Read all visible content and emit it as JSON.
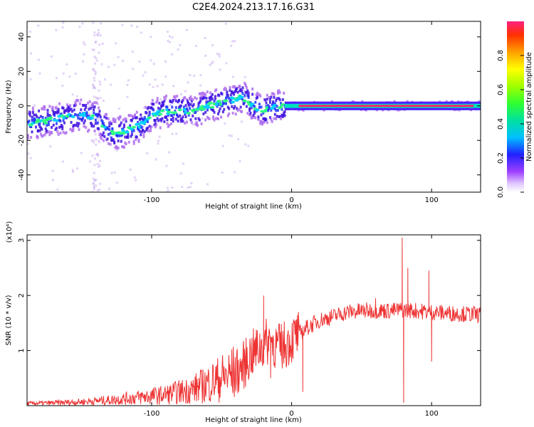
{
  "title": "C2E4.2024.213.17.16.G31",
  "chart_data": [
    {
      "type": "heatmap",
      "xlabel": "Height of straight line (km)",
      "ylabel": "Frequency (Hz)",
      "xlim": [
        -189,
        135
      ],
      "ylim": [
        -50,
        49
      ],
      "xticks": [
        -100,
        0,
        100
      ],
      "yticks": [
        -40,
        -20,
        0,
        20,
        40
      ],
      "grid": false,
      "ridge": {
        "x": [
          -189,
          -170,
          -150,
          -140,
          -130,
          -120,
          -110,
          -100,
          -90,
          -80,
          -70,
          -60,
          -50,
          -40,
          -35,
          -30,
          -25,
          -20,
          -15,
          -10,
          -5,
          0,
          10,
          50,
          75,
          80,
          90,
          100,
          135
        ],
        "y": [
          -10,
          -8,
          -5,
          -7,
          -16,
          -15,
          -12,
          -5,
          -3,
          -3,
          -3,
          0,
          2,
          4,
          5,
          2,
          -1,
          -3,
          -1,
          0,
          0,
          0,
          0,
          0,
          0,
          0,
          0,
          0,
          0
        ]
      },
      "colorbar": {
        "label": "Normalized spectral amplitude",
        "ticks": [
          "0.0",
          "0.2",
          "0.4",
          "0.6",
          "0.8"
        ],
        "range": [
          0,
          1
        ]
      }
    },
    {
      "type": "line",
      "xlabel": "Height of straight line (km)",
      "ylabel": "SNR (10 * v/v)",
      "multiplier": "(x10⁴)",
      "xlim": [
        -189,
        135
      ],
      "ylim": [
        0,
        3.1
      ],
      "xticks": [
        -100,
        0,
        100
      ],
      "yticks": [
        1,
        2,
        3
      ],
      "grid": false,
      "color": "#ee3333",
      "series": [
        {
          "x": [
            -189,
            -170,
            -150,
            -130,
            -110,
            -90,
            -70,
            -60,
            -50,
            -40,
            -35,
            -30,
            -25,
            -20,
            -15,
            -10,
            -5,
            0,
            10,
            20,
            30,
            40,
            50,
            60,
            70,
            80,
            90,
            100,
            110,
            120,
            135
          ],
          "values": [
            0.04,
            0.05,
            0.07,
            0.1,
            0.15,
            0.2,
            0.3,
            0.4,
            0.5,
            0.6,
            0.7,
            0.9,
            1.0,
            1.1,
            1.2,
            1.05,
            1.1,
            1.2,
            1.4,
            1.55,
            1.62,
            1.7,
            1.72,
            1.73,
            1.72,
            1.74,
            1.72,
            1.7,
            1.68,
            1.67,
            1.65
          ]
        }
      ],
      "spikes": [
        {
          "x": -20,
          "y": 2.0
        },
        {
          "x": -15,
          "y": 0.5
        },
        {
          "x": 8,
          "y": 0.25
        },
        {
          "x": 60,
          "y": 1.95
        },
        {
          "x": 79,
          "y": 3.05
        },
        {
          "x": 80,
          "y": 0.05
        },
        {
          "x": 83,
          "y": 2.5
        },
        {
          "x": 98,
          "y": 2.45
        },
        {
          "x": 100,
          "y": 0.8
        }
      ]
    }
  ]
}
